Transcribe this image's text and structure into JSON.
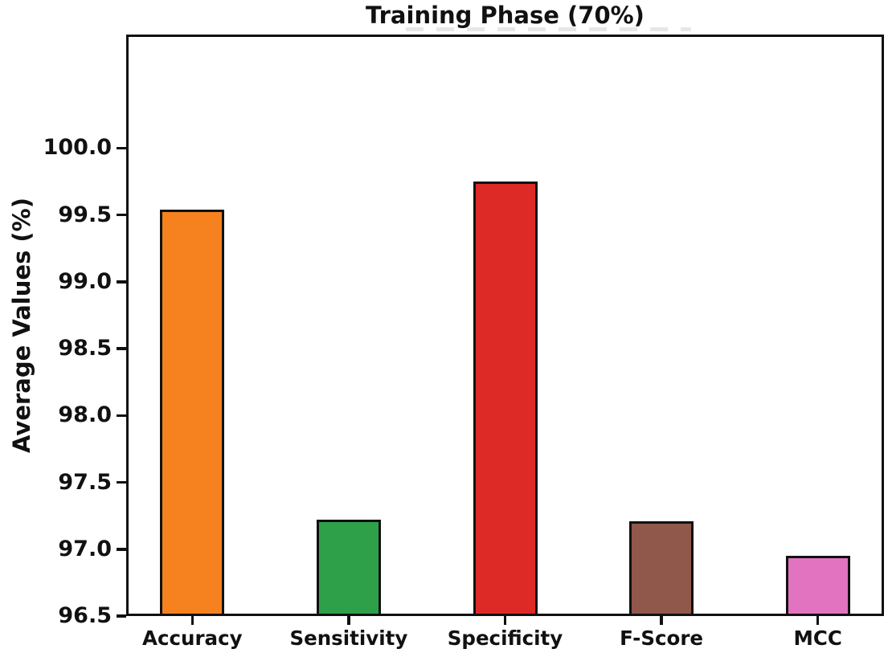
{
  "chart_data": {
    "type": "bar",
    "title": "Training Phase (70%)",
    "xlabel": "",
    "ylabel": "Average Values (%)",
    "categories": [
      "Accuracy",
      "Sensitivity",
      "Specificity",
      "F-Score",
      "MCC"
    ],
    "values": [
      99.54,
      97.22,
      99.75,
      97.21,
      96.95
    ],
    "bar_colors": [
      "#f5811f",
      "#2ea04a",
      "#dd2a27",
      "#90574b",
      "#e273c0"
    ],
    "bar_edge_color": "#111111",
    "axis_color": "#111111",
    "background_color": "#ffffff",
    "ylim": [
      96.5,
      100.85
    ],
    "yticks": [
      96.5,
      97.0,
      97.5,
      98.0,
      98.5,
      99.0,
      99.5,
      100.0
    ],
    "ytick_labels": [
      "96.5",
      "97.0",
      "97.5",
      "98.0",
      "98.5",
      "99.0",
      "99.5",
      "100.0"
    ],
    "grid": false,
    "legend": "none"
  }
}
